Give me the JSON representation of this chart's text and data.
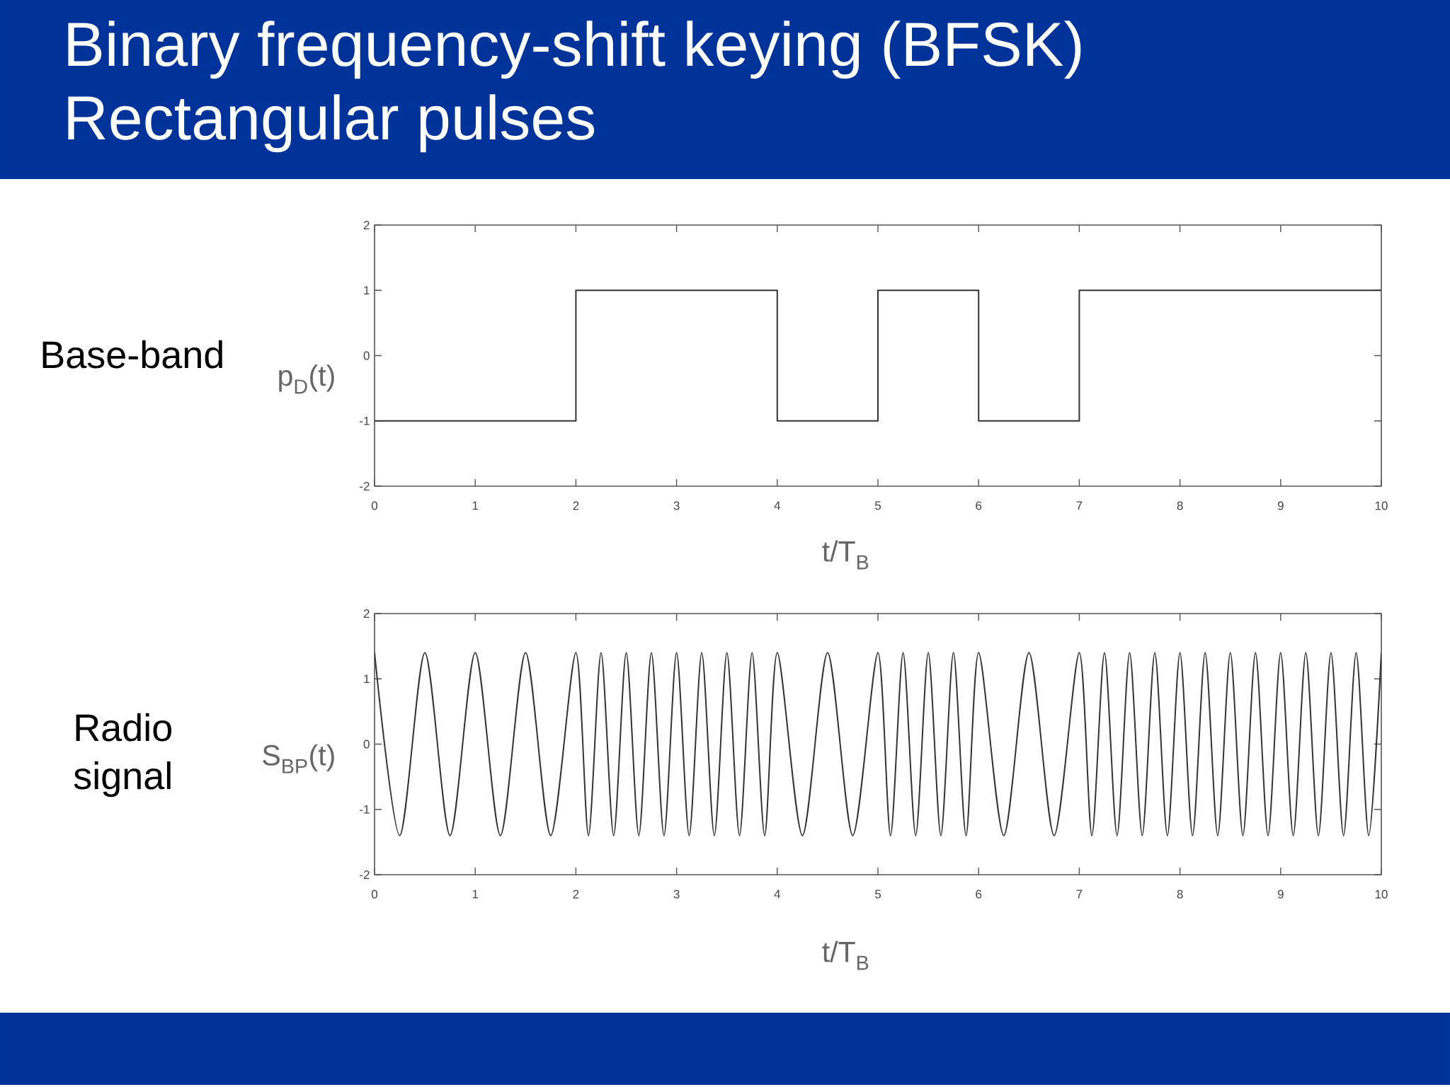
{
  "chart_data": [
    {
      "type": "step",
      "title": "Binary frequency-shift keying (BFSK)",
      "subtitle": "Rectangular pulses",
      "annotations": [
        "Base-band"
      ],
      "xlabel": "t/T$_{B}$",
      "ylabel": "p$_{D}$(t)",
      "x": [
        0,
        2,
        4,
        5,
        6,
        7,
        10
      ],
      "values": [
        -1,
        1,
        -1,
        1,
        -1,
        1,
        1
      ],
      "color": "#333333",
      "line_style": "solid",
      "xlim": [
        0,
        10
      ],
      "ylim": [
        -2,
        2
      ],
      "xticks": [
        0,
        1,
        2,
        3,
        4,
        5,
        6,
        7,
        8,
        9,
        10
      ],
      "yticks": [
        -2,
        -1,
        0,
        1,
        2
      ]
    },
    {
      "type": "line",
      "annotations": [
        "Radio signal"
      ],
      "xlabel": "t/T$_{B}$",
      "ylabel": "S$_{BP}$(t)",
      "x": [
        0,
        0.25,
        0.5,
        0.75,
        1,
        1.25,
        1.5,
        1.75,
        2,
        2.125,
        2.25,
        2.375,
        2.5,
        2.625,
        2.75,
        2.875,
        3,
        3.125,
        3.25,
        3.375,
        3.5,
        3.625,
        3.75,
        3.875,
        4,
        4.25,
        4.5,
        4.75,
        5,
        5.125,
        5.25,
        5.375,
        5.5,
        5.625,
        5.75,
        5.875,
        6,
        6.25,
        6.5,
        6.75,
        7,
        7.125,
        7.25,
        7.375,
        7.5,
        7.625,
        7.75,
        7.875,
        8,
        8.125,
        8.25,
        8.375,
        8.5,
        8.625,
        8.75,
        8.875,
        9,
        9.125,
        9.25,
        9.375,
        9.5,
        9.625,
        9.75,
        9.875,
        10
      ],
      "values": [
        1.4,
        -1.4,
        1.4,
        -1.4,
        1.4,
        -1.4,
        1.4,
        -1.4,
        1.4,
        -1.4,
        1.4,
        -1.4,
        1.4,
        -1.4,
        1.4,
        -1.4,
        1.4,
        -1.4,
        1.4,
        -1.4,
        1.4,
        -1.4,
        1.4,
        -1.4,
        1.4,
        -1.4,
        1.4,
        -1.4,
        1.4,
        -1.4,
        1.4,
        -1.4,
        1.4,
        -1.4,
        1.4,
        -1.4,
        1.4,
        -1.4,
        1.4,
        -1.4,
        1.4,
        -1.4,
        1.4,
        -1.4,
        1.4,
        -1.4,
        1.4,
        -1.4,
        1.4,
        -1.4,
        1.4,
        -1.4,
        1.4,
        -1.4,
        1.4,
        -1.4,
        1.4,
        -1.4,
        1.4,
        -1.4,
        1.4,
        -1.4,
        1.4,
        -1.4,
        1.4
      ],
      "color": "#333333",
      "line_style": "solid",
      "xlim": [
        0,
        10
      ],
      "ylim": [
        -2,
        2
      ],
      "xticks": [
        0,
        1,
        2,
        3,
        4,
        5,
        6,
        7,
        8,
        9,
        10
      ],
      "yticks": [
        -2,
        -1,
        0,
        1,
        2
      ]
    }
  ]
}
